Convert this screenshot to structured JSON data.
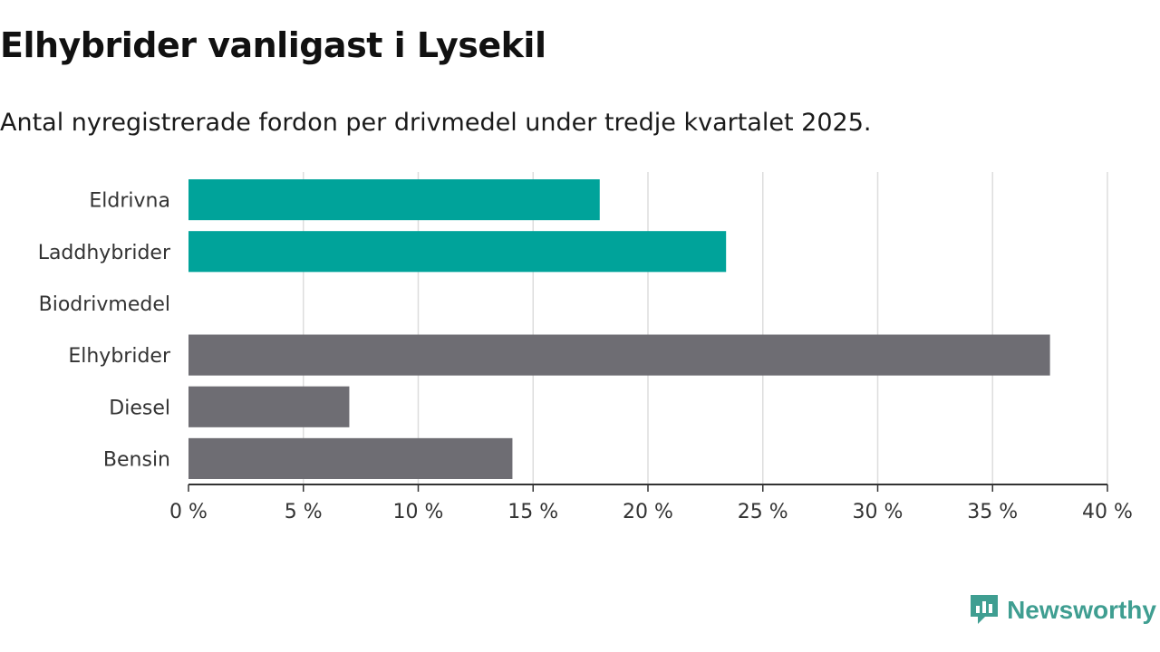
{
  "title": "Elhybrider vanligast i Lysekil",
  "subtitle": "Antal nyregistrerade fordon per drivmedel under tredje kvartalet 2025.",
  "brand": {
    "name": "Newsworthy",
    "icon": "newsworthy-logo-icon",
    "color": "#3f9e91"
  },
  "colors": {
    "highlight": "#00a39a",
    "default": "#6e6d73",
    "grid": "#dddddd",
    "axis": "#333333"
  },
  "chart_data": {
    "type": "bar",
    "orientation": "horizontal",
    "categories": [
      "Eldrivna",
      "Laddhybrider",
      "Biodrivmedel",
      "Elhybrider",
      "Diesel",
      "Bensin"
    ],
    "values": [
      17.9,
      23.4,
      0,
      37.5,
      7.0,
      14.1
    ],
    "highlighted": [
      true,
      true,
      false,
      false,
      false,
      false
    ],
    "xlim": [
      0,
      40
    ],
    "xticks": [
      0,
      5,
      10,
      15,
      20,
      25,
      30,
      35,
      40
    ],
    "tick_labels": [
      "0 %",
      "5 %",
      "10 %",
      "15 %",
      "20 %",
      "25 %",
      "30 %",
      "35 %",
      "40 %"
    ],
    "grid": true,
    "xlabel": "",
    "ylabel": ""
  }
}
